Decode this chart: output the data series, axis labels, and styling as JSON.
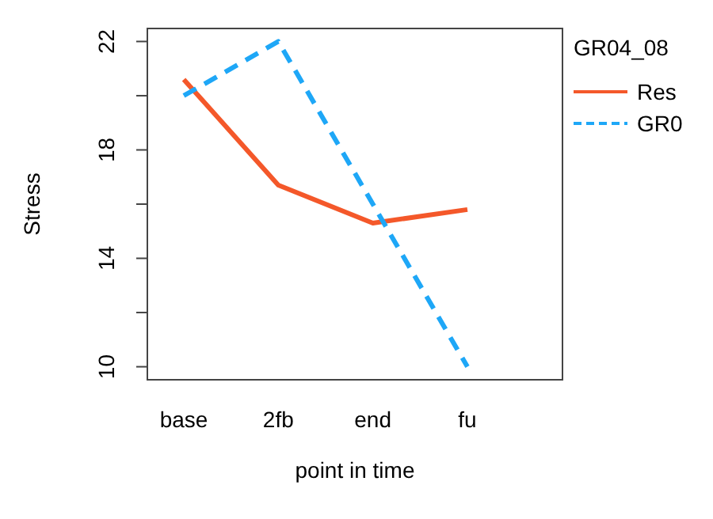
{
  "chart_data": {
    "type": "line",
    "xlabel": "point in time",
    "ylabel": "Stress",
    "legend_title": "GR04_08",
    "categories": [
      "base",
      "2fb",
      "end",
      "fu"
    ],
    "series": [
      {
        "name": "Res",
        "color": "#f4582a",
        "values": [
          20.6,
          16.7,
          15.3,
          15.8
        ],
        "line_style": "solid"
      },
      {
        "name": "GR0",
        "color": "#1ea7f7",
        "values": [
          20.0,
          22.0,
          16.0,
          10.0
        ],
        "line_style": "dashed"
      }
    ],
    "ylim": [
      9.52,
      22.48
    ],
    "yticks": [
      10,
      {
        "value": 12,
        "label": null
      },
      14,
      {
        "value": 16,
        "label": null
      },
      18,
      {
        "value": 20,
        "label": null
      },
      22
    ],
    "grid": false,
    "legend": "top right",
    "marker": "none"
  }
}
